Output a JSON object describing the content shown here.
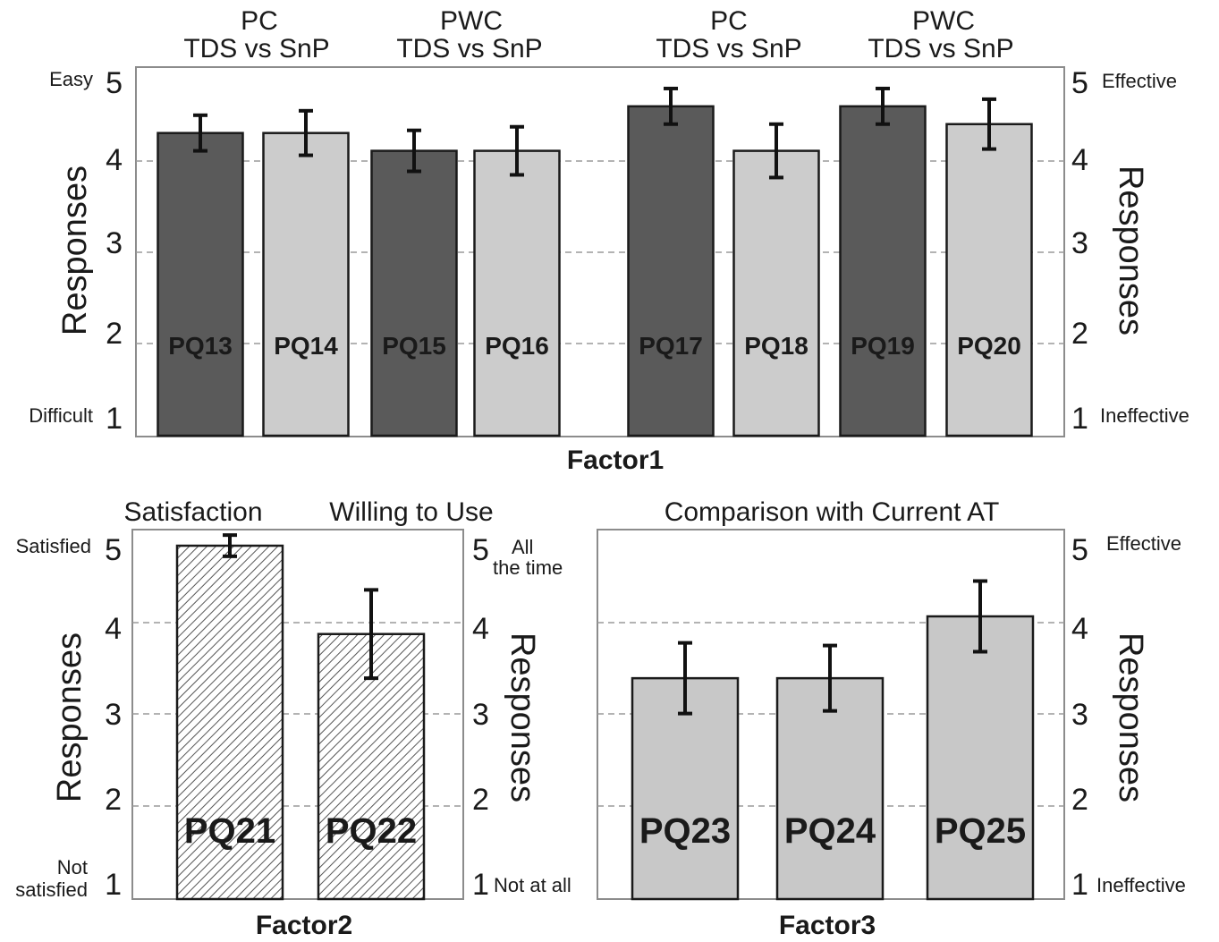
{
  "chart_data": [
    {
      "type": "bar",
      "xlabel": "Factor1",
      "ylabel": "Responses",
      "ylabel_right": "Responses",
      "ylim": [
        1,
        5
      ],
      "yticks": [
        "1",
        "2",
        "3",
        "4",
        "5"
      ],
      "y_anchor_left": {
        "top": "Easy",
        "bottom": "Difficult"
      },
      "y_anchor_right": {
        "top": "Effective",
        "bottom": "Ineffective"
      },
      "grid": "dashed horizontal",
      "group_headers": [
        {
          "line1": "PC",
          "line2": "TDS vs SnP"
        },
        {
          "line1": "PWC",
          "line2": "TDS vs SnP"
        },
        {
          "line1": "PC",
          "line2": "TDS vs SnP"
        },
        {
          "line1": "PWC",
          "line2": "TDS vs SnP"
        }
      ],
      "categories": [
        "PQ13",
        "PQ14",
        "PQ15",
        "PQ16",
        "PQ17",
        "PQ18",
        "PQ19",
        "PQ20"
      ],
      "values": [
        4.4,
        4.4,
        4.2,
        4.2,
        4.7,
        4.2,
        4.7,
        4.5
      ],
      "error": [
        0.2,
        0.25,
        0.23,
        0.27,
        0.2,
        0.3,
        0.2,
        0.28
      ],
      "colors": [
        "#5a5a5a",
        "#cccccc",
        "#5a5a5a",
        "#cccccc",
        "#5a5a5a",
        "#cccccc",
        "#5a5a5a",
        "#cccccc"
      ]
    },
    {
      "type": "bar",
      "xlabel": "Factor2",
      "ylabel": "Responses",
      "ylabel_right": "Responses",
      "ylim": [
        1,
        5
      ],
      "yticks": [
        "1",
        "2",
        "3",
        "4",
        "5"
      ],
      "y_anchor_left": {
        "top": "Satisfied",
        "bottom_line1": "Not",
        "bottom_line2": "satisfied"
      },
      "y_anchor_right": {
        "top_line1": "All",
        "top_line2": "the time",
        "bottom": "Not at all"
      },
      "grid": "dashed horizontal",
      "group_headers": [
        {
          "line1": "Satisfaction"
        },
        {
          "line1": "Willing to Use"
        }
      ],
      "categories": [
        "PQ21",
        "PQ22"
      ],
      "values": [
        5.0,
        4.0
      ],
      "error": [
        0.12,
        0.5
      ],
      "pattern": "hatched"
    },
    {
      "type": "bar",
      "xlabel": "Factor3",
      "ylabel_right": "Responses",
      "ylim": [
        1,
        5
      ],
      "yticks": [
        "1",
        "2",
        "3",
        "4",
        "5"
      ],
      "y_anchor_right": {
        "top": "Effective",
        "bottom": "Ineffective"
      },
      "grid": "dashed horizontal",
      "title": "Comparison with Current AT",
      "categories": [
        "PQ23",
        "PQ24",
        "PQ25"
      ],
      "values": [
        3.5,
        3.5,
        4.2
      ],
      "error": [
        0.4,
        0.37,
        0.4
      ],
      "colors": [
        "#c8c8c8",
        "#c8c8c8",
        "#c8c8c8"
      ]
    }
  ]
}
